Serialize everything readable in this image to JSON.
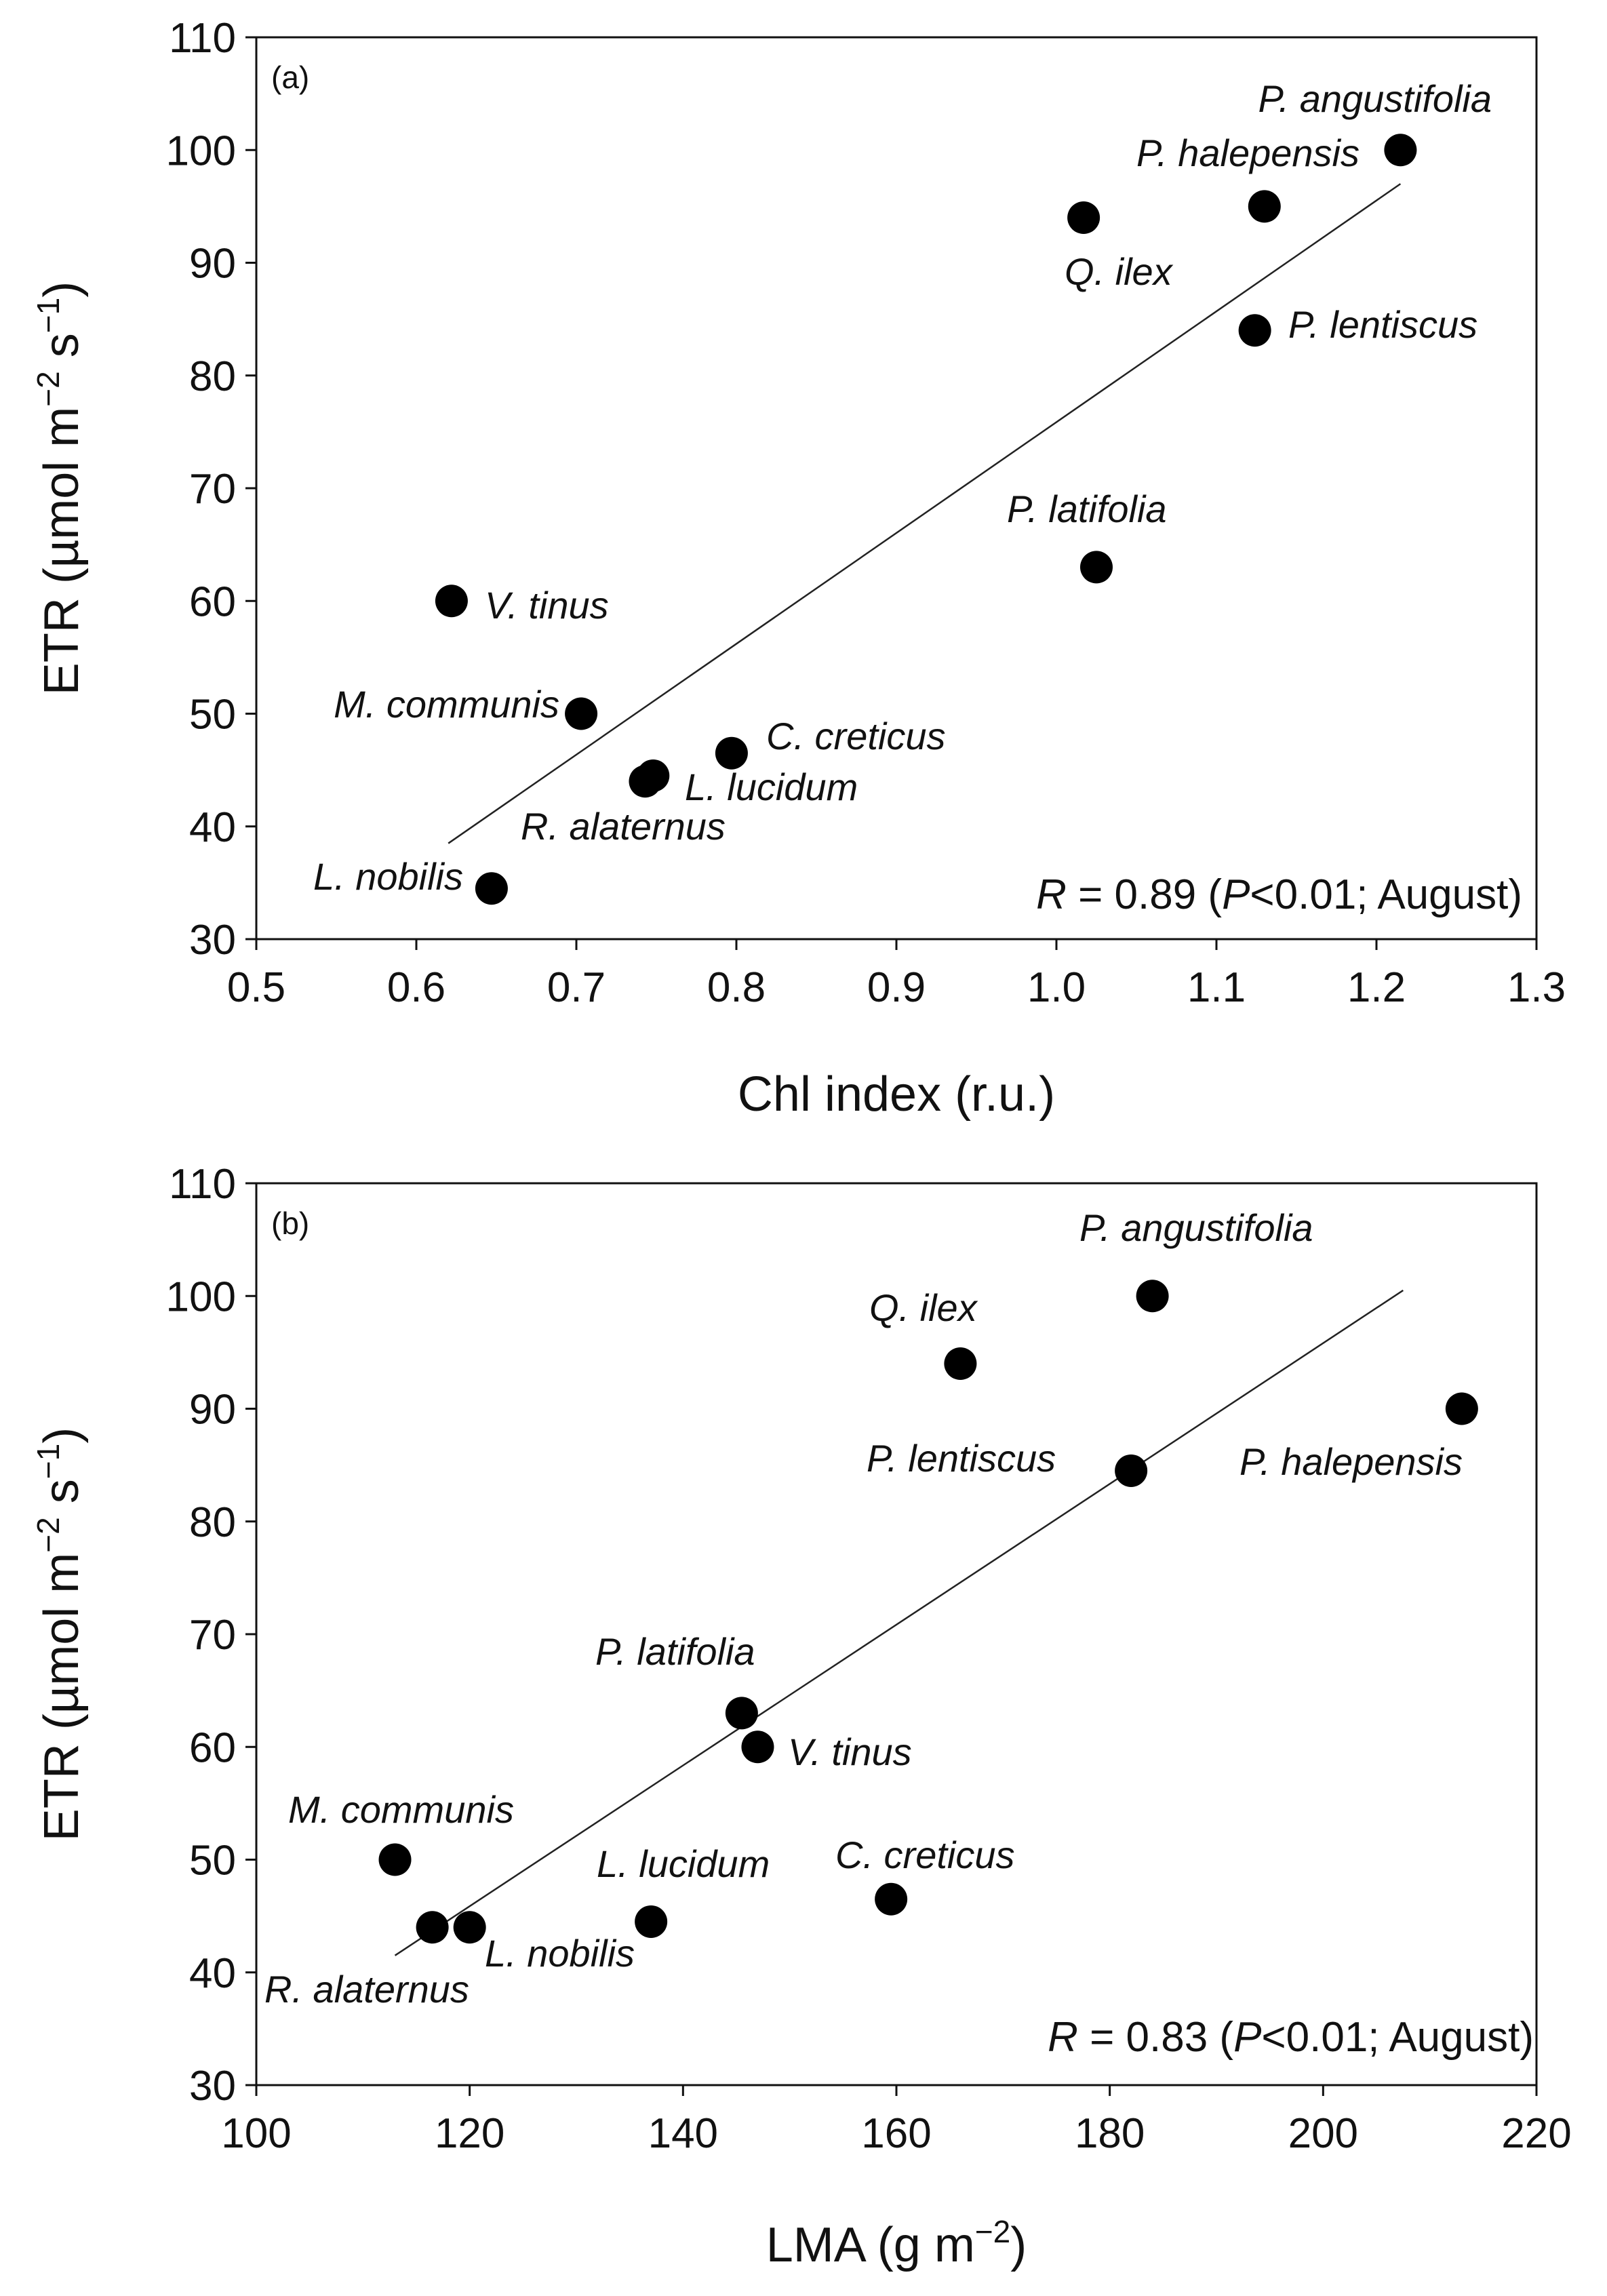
{
  "chart_data": [
    {
      "type": "scatter",
      "panel_label": "(a)",
      "xlabel": "Chl index (r.u.)",
      "ylabel_parts": [
        "ETR (µmol m",
        "−2",
        " s",
        "−1",
        ")"
      ],
      "xlim": [
        0.5,
        1.3
      ],
      "ylim": [
        30,
        110
      ],
      "xticks": [
        0.5,
        0.6,
        0.7,
        0.8,
        0.9,
        1.0,
        1.1,
        1.2,
        1.3
      ],
      "xtick_labels": [
        "0.5",
        "0.6",
        "0.7",
        "0.8",
        "0.9",
        "1.0",
        "1.1",
        "1.2",
        "1.3"
      ],
      "yticks": [
        30,
        40,
        50,
        60,
        70,
        80,
        90,
        100,
        110
      ],
      "ytick_labels": [
        "30",
        "40",
        "50",
        "60",
        "70",
        "80",
        "90",
        "100",
        "110"
      ],
      "points": [
        {
          "label": "P. angustifolia",
          "x": 1.215,
          "y": 100
        },
        {
          "label": "P. halepensis",
          "x": 1.13,
          "y": 95
        },
        {
          "label": "Q. ilex",
          "x": 1.017,
          "y": 94
        },
        {
          "label": "P. lentiscus",
          "x": 1.124,
          "y": 84
        },
        {
          "label": "P. latifolia",
          "x": 1.025,
          "y": 63
        },
        {
          "label": "V. tinus",
          "x": 0.622,
          "y": 60
        },
        {
          "label": "M. communis",
          "x": 0.703,
          "y": 50
        },
        {
          "label": "C. creticus",
          "x": 0.797,
          "y": 46.5
        },
        {
          "label": "L. lucidum",
          "x": 0.748,
          "y": 44.5
        },
        {
          "label": "R. alaternus",
          "x": 0.743,
          "y": 44
        },
        {
          "label": "L. nobilis",
          "x": 0.647,
          "y": 34.5
        }
      ],
      "fit_line": {
        "x": [
          0.62,
          1.215
        ],
        "y": [
          38.5,
          97
        ]
      },
      "stat": {
        "prefix": "R",
        "text": " = 0.89 (",
        "p": "P",
        "rest": "<0.01; August)"
      }
    },
    {
      "type": "scatter",
      "panel_label": "(b)",
      "xlabel_parts": [
        "LMA (g m",
        "−2",
        ")"
      ],
      "ylabel_parts": [
        "ETR (µmol m",
        "−2",
        " s",
        "−1",
        ")"
      ],
      "xlim": [
        100,
        220
      ],
      "ylim": [
        30,
        110
      ],
      "xticks": [
        100,
        120,
        140,
        160,
        180,
        200,
        220
      ],
      "xtick_labels": [
        "100",
        "120",
        "140",
        "160",
        "180",
        "200",
        "220"
      ],
      "yticks": [
        30,
        40,
        50,
        60,
        70,
        80,
        90,
        100,
        110
      ],
      "ytick_labels": [
        "30",
        "40",
        "50",
        "60",
        "70",
        "80",
        "90",
        "100",
        "110"
      ],
      "points": [
        {
          "label": "P. angustifolia",
          "x": 184,
          "y": 100
        },
        {
          "label": "Q. ilex",
          "x": 166,
          "y": 94
        },
        {
          "label": "P. halepensis",
          "x": 213,
          "y": 90
        },
        {
          "label": "P. lentiscus",
          "x": 182,
          "y": 84.5
        },
        {
          "label": "P. latifolia",
          "x": 145.5,
          "y": 63
        },
        {
          "label": "V. tinus",
          "x": 147,
          "y": 60
        },
        {
          "label": "M. communis",
          "x": 113,
          "y": 50
        },
        {
          "label": "C. creticus",
          "x": 159.5,
          "y": 46.5
        },
        {
          "label": "L. lucidum",
          "x": 137,
          "y": 44.5
        },
        {
          "label": "L. nobilis",
          "x": 120,
          "y": 44
        },
        {
          "label": "R. alaternus",
          "x": 116.5,
          "y": 44
        }
      ],
      "fit_line": {
        "x": [
          113,
          207.5
        ],
        "y": [
          41.5,
          100.5
        ]
      },
      "stat": {
        "prefix": "R",
        "text": " = 0.83 (",
        "p": "P",
        "rest": "<0.01; August)"
      }
    }
  ]
}
